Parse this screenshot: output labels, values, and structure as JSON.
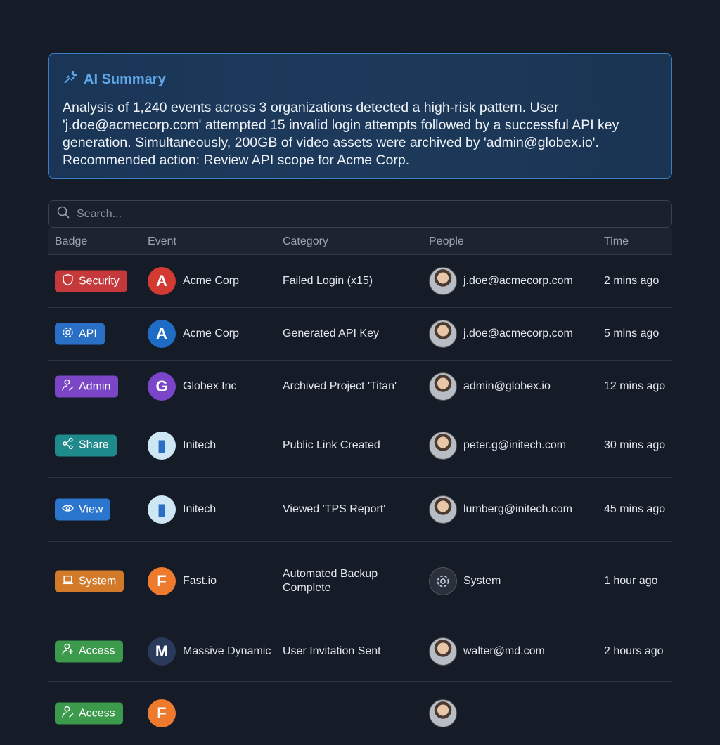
{
  "summary": {
    "title": "AI Summary",
    "icon": "sparkles-icon",
    "text": "Analysis of 1,240 events across 3 organizations detected a high-risk pattern. User 'j.doe@acmecorp.com' attempted 15 invalid login attempts followed by a successful API key generation. Simultaneously, 200GB of video assets were archived by 'admin@globex.io'. Recommended action: Review API scope for Acme Corp."
  },
  "search": {
    "placeholder": "Search..."
  },
  "columns": [
    "Badge",
    "Event",
    "Category",
    "People",
    "Time"
  ],
  "rows": [
    {
      "badge": "Security",
      "badge_icon": "shield-icon",
      "color": "#c6393b",
      "org": "Acme Corp",
      "org_color": "#d23a32",
      "org_letter": "A",
      "category": "Failed Login (x15)",
      "person": "j.doe@acmecorp.com",
      "time": "2 mins ago"
    },
    {
      "badge": "API",
      "badge_icon": "gear-icon",
      "color": "#2a6fc6",
      "org": "Acme Corp",
      "org_color": "#1f6cc4",
      "org_letter": "A",
      "category": "Generated API Key",
      "person": "j.doe@acmecorp.com",
      "time": "5 mins ago"
    },
    {
      "badge": "Admin",
      "badge_icon": "user-edit-icon",
      "color": "#7b46c6",
      "org": "Globex Inc",
      "org_color": "#7a45c8",
      "org_letter": "G",
      "category": "Archived Project 'Titan'",
      "person": "admin@globex.io",
      "time": "12 mins ago"
    },
    {
      "badge": "Share",
      "badge_icon": "share-icon",
      "color": "#1f8a8c",
      "org": "Initech",
      "org_color": "#cfe6f5",
      "org_letter": "▮",
      "category": "Public Link Created",
      "person": "peter.g@initech.com",
      "time": "30 mins ago"
    },
    {
      "badge": "View",
      "badge_icon": "eye-icon",
      "color": "#2a76cf",
      "org": "Initech",
      "org_color": "#cfe6f5",
      "org_letter": "▮",
      "category": "Viewed 'TPS Report'",
      "person": "lumberg@initech.com",
      "time": "45 mins ago"
    },
    {
      "badge": "System",
      "badge_icon": "laptop-icon",
      "color": "#d27a2a",
      "org": "Fast.io",
      "org_color": "#ee7a2e",
      "org_letter": "F",
      "category": "Automated Backup Complete",
      "person": "System",
      "time": "1 hour ago"
    },
    {
      "badge": "Access",
      "badge_icon": "user-plus-icon",
      "color": "#3c9a4c",
      "org": "Massive Dynamic",
      "org_color": "#2a3a5a",
      "org_letter": "M",
      "category": "User Invitation Sent",
      "person": "walter@md.com",
      "time": "2 hours ago"
    },
    {
      "badge": "Access",
      "badge_icon": "user-edit-icon",
      "color": "#3c9a4c",
      "org": "",
      "org_color": "#ee7a2e",
      "org_letter": "F",
      "category": "",
      "person": "",
      "time": ""
    }
  ]
}
